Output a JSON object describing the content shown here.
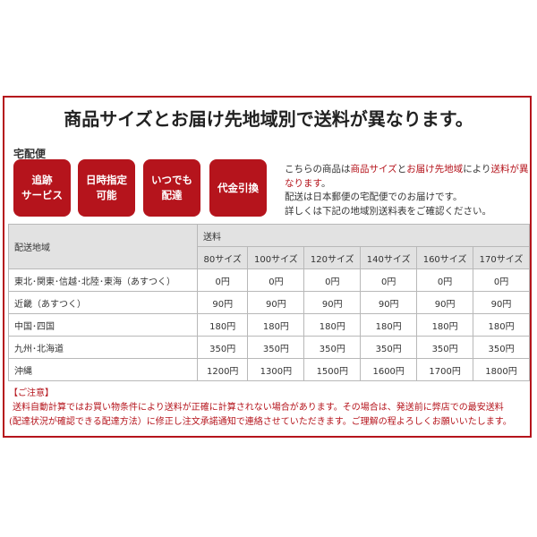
{
  "title": "商品サイズとお届け先地域別で送料が異なります。",
  "subtitle": "宅配便",
  "badges": [
    "追跡\nサービス",
    "日時指定\n可能",
    "いつでも\n配達",
    "代金引換"
  ],
  "description": {
    "p1": "こちらの商品は",
    "p2": "商品サイズ",
    "p3": "と",
    "p4": "お届け先地域",
    "p5": "により",
    "p6": "送料が異なります",
    "p7": "。",
    "line2": "配送は日本郵便の宅配便でのお届けです。",
    "line3": "詳しくは下記の地域別送料表をご確認ください。"
  },
  "table": {
    "region_header": "配送地域",
    "fee_header": "送料",
    "sizes": [
      "80サイズ",
      "100サイズ",
      "120サイズ",
      "140サイズ",
      "160サイズ",
      "170サイズ"
    ],
    "rows": [
      {
        "region": "東北･関東･信越･北陸･東海（あすつく）",
        "prices": [
          "0円",
          "0円",
          "0円",
          "0円",
          "0円",
          "0円"
        ]
      },
      {
        "region": "近畿（あすつく）",
        "prices": [
          "90円",
          "90円",
          "90円",
          "90円",
          "90円",
          "90円"
        ]
      },
      {
        "region": "中国･四国",
        "prices": [
          "180円",
          "180円",
          "180円",
          "180円",
          "180円",
          "180円"
        ]
      },
      {
        "region": "九州･北海道",
        "prices": [
          "350円",
          "350円",
          "350円",
          "350円",
          "350円",
          "350円"
        ]
      },
      {
        "region": "沖縄",
        "prices": [
          "1200円",
          "1300円",
          "1500円",
          "1600円",
          "1700円",
          "1800円"
        ]
      }
    ]
  },
  "note": {
    "heading": "【ご注意】",
    "line1": "送料自動計算ではお買い物条件により送料が正確に計算されない場合があります。その場合は、発送前に弊店での最安送料",
    "line2": "(配達状況が確認できる配達方法）に修正し注文承諾通知で連絡させていただきます。ご理解の程よろしくお願いいたします。"
  },
  "colors": {
    "accent": "#b5141c",
    "header_bg": "#e2e2e2"
  }
}
